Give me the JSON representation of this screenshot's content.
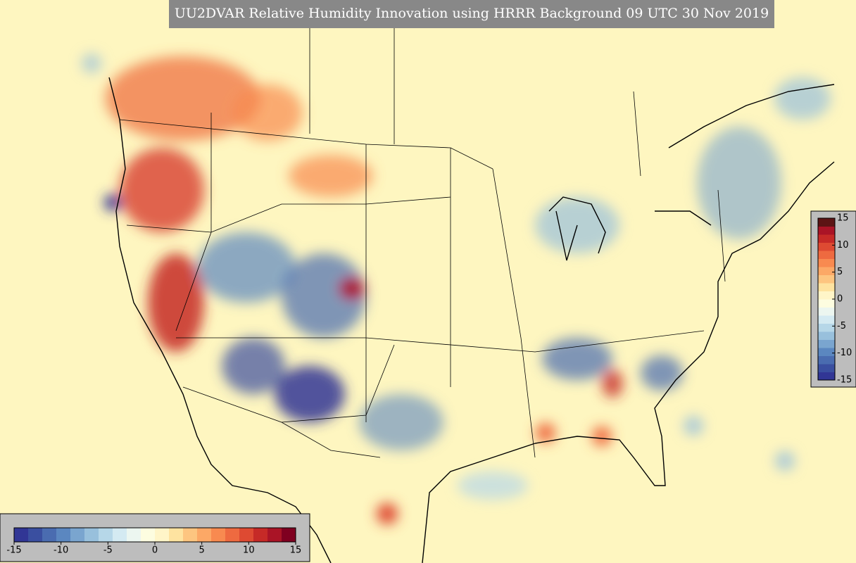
{
  "title": "UU2DVAR Relative Humidity Innovation using HRRR Background 09 UTC 30 Nov 2019",
  "colorbars": [
    {
      "orientation": "horizontal",
      "lim": [
        -15,
        15
      ],
      "ticks": [
        -15,
        -10,
        -5,
        0,
        5,
        10,
        15
      ],
      "colors": [
        "#313695",
        "#3a4fa0",
        "#4a6cb0",
        "#5b87c0",
        "#7aa5cf",
        "#98c0dc",
        "#b6d7e8",
        "#d4eaf2",
        "#ecf6f0",
        "#fdfde0",
        "#fff5c8",
        "#fee3a0",
        "#fdc580",
        "#fca866",
        "#f88a50",
        "#ee6a40",
        "#de4a32",
        "#c62a27",
        "#aa1426",
        "#7f0020"
      ]
    },
    {
      "orientation": "vertical",
      "lim": [
        -15,
        15
      ],
      "ticks": [
        -15,
        -10,
        -5,
        0,
        5,
        10,
        15
      ],
      "colors": [
        "#313695",
        "#3a4fa0",
        "#4a6cb0",
        "#5b87c0",
        "#7aa5cf",
        "#98c0dc",
        "#b6d7e8",
        "#d4eaf2",
        "#ecf6f0",
        "#fdfde0",
        "#fff5c8",
        "#fee3a0",
        "#fdc580",
        "#fca866",
        "#f88a50",
        "#ee6a40",
        "#de4a32",
        "#c62a27",
        "#aa1426",
        "#5c1414"
      ]
    }
  ]
}
